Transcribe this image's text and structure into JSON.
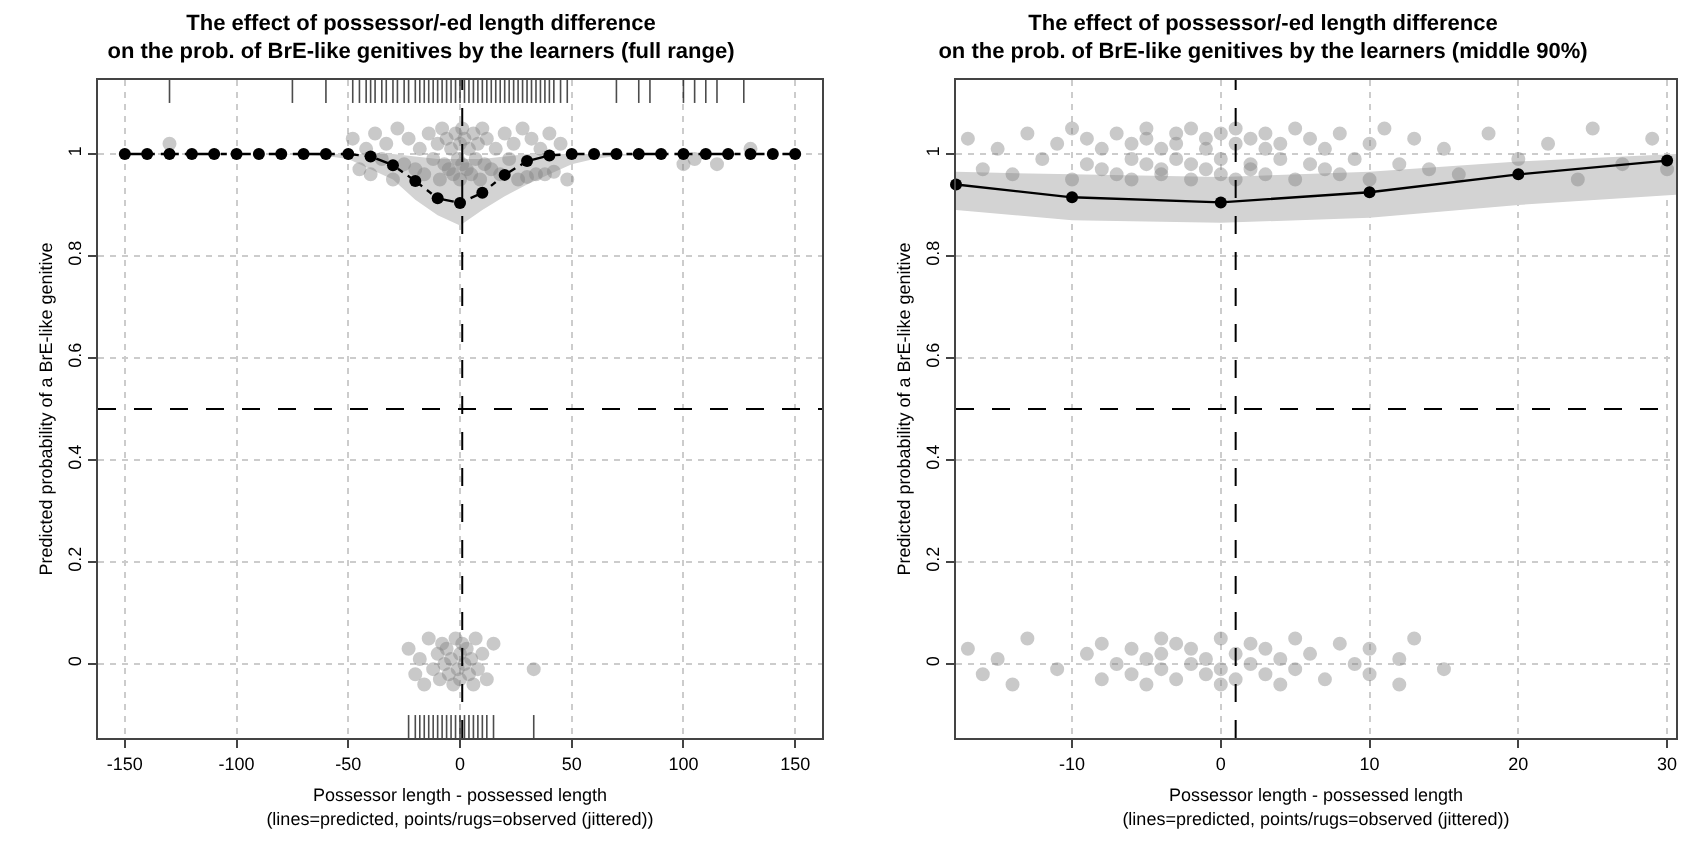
{
  "chart_data": [
    {
      "type": "scatter",
      "title": "The effect of possessor/-ed length difference\non the prob. of BrE-like genitives by the learners (full range)",
      "xlabel": "Possessor length - possessed length\n(lines=predicted, points/rugs=observed (jittered))",
      "ylabel": "Predicted probability of a BrE-like genitive",
      "xlim": [
        -162,
        162
      ],
      "xticks": [
        -150,
        -100,
        -50,
        0,
        50,
        100,
        150
      ],
      "ylim": [
        -0.145,
        1.145
      ],
      "yticks": [
        0.0,
        0.2,
        0.4,
        0.6,
        0.8,
        1.0
      ],
      "grid": true,
      "ref_lines": [
        {
          "axis": "x",
          "value": 1,
          "color": "#000000",
          "line_style": "dashed"
        },
        {
          "axis": "y",
          "value": 0.5,
          "color": "#000000",
          "line_style": "dashed"
        }
      ],
      "series": [
        {
          "marker": "circle",
          "color": "#808080",
          "x": [
            -48,
            -45,
            -42,
            -40,
            -38,
            -35,
            -33,
            -30,
            -28,
            -25,
            -23,
            -20,
            -18,
            -16,
            -14,
            -12,
            -10,
            -9,
            -8,
            -7,
            -6,
            -5,
            -4,
            -3,
            -2,
            -1,
            0,
            0,
            1,
            1,
            2,
            3,
            4,
            5,
            6,
            7,
            8,
            9,
            10,
            11,
            12,
            14,
            16,
            18,
            20,
            22,
            24,
            26,
            28,
            30,
            32,
            34,
            36,
            38,
            40,
            42,
            45,
            48,
            -130,
            100,
            105,
            115,
            130
          ],
          "values": [
            1.03,
            0.97,
            1.01,
            0.96,
            1.04,
            0.99,
            1.02,
            0.95,
            1.05,
            0.98,
            1.03,
            0.97,
            1.01,
            0.96,
            1.04,
            0.99,
            1.02,
            0.95,
            1.05,
            0.98,
            1.03,
            0.97,
            1.01,
            0.96,
            1.04,
            0.99,
            1.02,
            0.95,
            1.05,
            0.98,
            1.03,
            0.97,
            1.01,
            0.96,
            1.04,
            0.99,
            1.02,
            0.95,
            1.05,
            0.98,
            1.03,
            0.97,
            1.01,
            0.96,
            1.04,
            0.99,
            1.02,
            0.95,
            1.05,
            0.955,
            1.03,
            0.96,
            1.01,
            0.96,
            1.04,
            0.965,
            1.02,
            0.95,
            1.02,
            0.98,
            0.99,
            0.98,
            1.01
          ]
        },
        {
          "marker": "circle",
          "color": "#808080",
          "x": [
            -23,
            -20,
            -18,
            -16,
            -14,
            -12,
            -10,
            -9,
            -8,
            -7,
            -6,
            -5,
            -4,
            -3,
            -2,
            -1,
            0,
            0,
            1,
            2,
            3,
            4,
            5,
            6,
            7,
            8,
            10,
            12,
            15,
            33
          ],
          "values": [
            0.03,
            -0.02,
            0.01,
            -0.04,
            0.05,
            -0.01,
            0.02,
            -0.03,
            0.04,
            0.0,
            0.03,
            -0.02,
            0.01,
            -0.04,
            0.05,
            -0.01,
            0.02,
            -0.03,
            0.04,
            0.0,
            0.03,
            -0.02,
            0.01,
            -0.04,
            0.05,
            -0.01,
            0.02,
            -0.03,
            0.04,
            -0.01
          ]
        },
        {
          "type": "bar",
          "color": "#000000",
          "x": [
            -130,
            -75,
            -60,
            -48,
            -45,
            -42,
            -40,
            -38,
            -35,
            -33,
            -30,
            -28,
            -25,
            -23,
            -20,
            -18,
            -16,
            -14,
            -12,
            -10,
            -8,
            -6,
            -4,
            -2,
            0,
            2,
            4,
            6,
            8,
            10,
            12,
            14,
            16,
            18,
            20,
            22,
            24,
            26,
            28,
            30,
            32,
            34,
            36,
            38,
            40,
            42,
            45,
            48,
            70,
            80,
            85,
            100,
            105,
            110,
            115,
            127
          ],
          "base": [
            1.1,
            1.1,
            1.1,
            1.1,
            1.1,
            1.1,
            1.1,
            1.1,
            1.1,
            1.1,
            1.1,
            1.1,
            1.1,
            1.1,
            1.1,
            1.1,
            1.1,
            1.1,
            1.1,
            1.1,
            1.1,
            1.1,
            1.1,
            1.1,
            1.1,
            1.1,
            1.1,
            1.1,
            1.1,
            1.1,
            1.1,
            1.1,
            1.1,
            1.1,
            1.1,
            1.1,
            1.1,
            1.1,
            1.1,
            1.1,
            1.1,
            1.1,
            1.1,
            1.1,
            1.1,
            1.1,
            1.1,
            1.1,
            1.1,
            1.1,
            1.1,
            1.1,
            1.1,
            1.1,
            1.1,
            1.1
          ],
          "values": [
            0.045,
            0.045,
            0.045,
            0.045,
            0.045,
            0.045,
            0.045,
            0.045,
            0.045,
            0.045,
            0.045,
            0.045,
            0.045,
            0.045,
            0.045,
            0.045,
            0.045,
            0.045,
            0.045,
            0.045,
            0.045,
            0.045,
            0.045,
            0.045,
            0.045,
            0.045,
            0.045,
            0.045,
            0.045,
            0.045,
            0.045,
            0.045,
            0.045,
            0.045,
            0.045,
            0.045,
            0.045,
            0.045,
            0.045,
            0.045,
            0.045,
            0.045,
            0.045,
            0.045,
            0.045,
            0.045,
            0.045,
            0.045,
            0.045,
            0.045,
            0.045,
            0.045,
            0.045,
            0.045,
            0.045,
            0.045
          ]
        },
        {
          "type": "bar",
          "color": "#000000",
          "x": [
            -23,
            -20,
            -18,
            -16,
            -14,
            -12,
            -10,
            -8,
            -6,
            -4,
            -2,
            0,
            2,
            4,
            6,
            8,
            10,
            12,
            15,
            33
          ],
          "base": [
            -0.145,
            -0.145,
            -0.145,
            -0.145,
            -0.145,
            -0.145,
            -0.145,
            -0.145,
            -0.145,
            -0.145,
            -0.145,
            -0.145,
            -0.145,
            -0.145,
            -0.145,
            -0.145,
            -0.145,
            -0.145,
            -0.145,
            -0.145
          ],
          "values": [
            0.045,
            0.045,
            0.045,
            0.045,
            0.045,
            0.045,
            0.045,
            0.045,
            0.045,
            0.045,
            0.045,
            0.045,
            0.045,
            0.045,
            0.045,
            0.045,
            0.045,
            0.045,
            0.045,
            0.045
          ]
        },
        {
          "type": "line",
          "marker": "circle",
          "line_style": "dashed",
          "color": "#000000",
          "x": [
            -150,
            -140,
            -130,
            -120,
            -110,
            -100,
            -90,
            -80,
            -70,
            -60,
            -50,
            -40,
            -30,
            -20,
            -10,
            0,
            10,
            20,
            30,
            40,
            50,
            60,
            70,
            80,
            90,
            100,
            110,
            120,
            130,
            140,
            150
          ],
          "values": [
            1.0,
            1.0,
            1.0,
            1.0,
            1.0,
            1.0,
            1.0,
            1.0,
            1.0,
            1.0,
            1.0,
            0.995,
            0.978,
            0.947,
            0.913,
            0.904,
            0.924,
            0.959,
            0.986,
            0.997,
            1.0,
            1.0,
            1.0,
            1.0,
            1.0,
            1.0,
            1.0,
            1.0,
            1.0,
            1.0,
            1.0
          ],
          "lower": [
            1.0,
            1.0,
            1.0,
            1.0,
            1.0,
            1.0,
            1.0,
            1.0,
            0.998,
            0.996,
            0.99,
            0.97,
            0.95,
            0.91,
            0.88,
            0.86,
            0.89,
            0.917,
            0.94,
            0.96,
            0.98,
            0.99,
            0.996,
            0.998,
            1.0,
            1.0,
            1.0,
            1.0,
            1.0,
            1.0,
            1.0
          ],
          "upper": [
            1.0,
            1.0,
            1.0,
            1.0,
            1.0,
            1.0,
            1.0,
            1.0,
            1.0,
            1.0,
            1.0,
            1.0,
            1.0,
            0.995,
            0.99,
            0.99,
            0.99,
            0.995,
            1.0,
            1.0,
            1.0,
            1.0,
            1.0,
            1.0,
            1.0,
            1.0,
            1.0,
            1.0,
            1.0,
            1.0,
            1.0
          ]
        }
      ]
    },
    {
      "type": "scatter",
      "title": "The effect of possessor/-ed length difference\non the prob. of BrE-like genitives by the learners (middle 90%)",
      "xlabel": "Possessor length - possessed length\n(lines=predicted, points/rugs=observed (jittered))",
      "ylabel": "Predicted probability of a BrE-like genitive",
      "xlim": [
        -17.8,
        30.6
      ],
      "xticks": [
        -10,
        0,
        10,
        20,
        30
      ],
      "ylim": [
        -0.145,
        1.145
      ],
      "yticks": [
        0.0,
        0.2,
        0.4,
        0.6,
        0.8,
        1.0
      ],
      "grid": true,
      "ref_lines": [
        {
          "axis": "x",
          "value": 1,
          "color": "#000000",
          "line_style": "dashed"
        },
        {
          "axis": "y",
          "value": 0.5,
          "color": "#000000",
          "line_style": "dashed"
        }
      ],
      "series": [
        {
          "type": "line",
          "marker": "none",
          "line_style": "solid",
          "color": "#d3d3d3",
          "x": [
            -17.8,
            -10,
            0,
            10,
            20,
            30.6
          ],
          "values": [
            null,
            null,
            null,
            null,
            null,
            null
          ],
          "lower": [
            0.89,
            0.87,
            0.865,
            0.875,
            0.9,
            0.92
          ],
          "upper": [
            0.965,
            0.96,
            0.955,
            0.965,
            0.985,
            1.0
          ]
        },
        {
          "marker": "circle",
          "color": "#808080",
          "x": [
            -17,
            -16,
            -15,
            -14,
            -13,
            -12,
            -11,
            -10,
            -10,
            -9,
            -9,
            -8,
            -8,
            -7,
            -7,
            -6,
            -6,
            -6,
            -5,
            -5,
            -5,
            -4,
            -4,
            -4,
            -3,
            -3,
            -3,
            -2,
            -2,
            -2,
            -1,
            -1,
            -1,
            0,
            0,
            0,
            1,
            1,
            1,
            2,
            2,
            2,
            3,
            3,
            3,
            4,
            4,
            5,
            5,
            6,
            6,
            7,
            7,
            8,
            8,
            9,
            10,
            10,
            11,
            12,
            13,
            14,
            15,
            16,
            18,
            20,
            22,
            24,
            25,
            27,
            29,
            30
          ],
          "values": [
            1.03,
            0.97,
            1.01,
            0.96,
            1.04,
            0.99,
            1.02,
            0.95,
            1.05,
            0.98,
            1.03,
            0.97,
            1.01,
            0.96,
            1.04,
            0.99,
            1.02,
            0.95,
            1.05,
            0.98,
            1.03,
            0.97,
            1.01,
            0.96,
            1.04,
            0.99,
            1.02,
            0.95,
            1.05,
            0.98,
            1.03,
            0.97,
            1.01,
            0.96,
            1.04,
            0.99,
            1.02,
            0.95,
            1.05,
            0.98,
            1.03,
            0.97,
            1.01,
            0.96,
            1.04,
            0.99,
            1.02,
            0.95,
            1.05,
            0.98,
            1.03,
            0.97,
            1.01,
            0.96,
            1.04,
            0.99,
            1.02,
            0.95,
            1.05,
            0.98,
            1.03,
            0.97,
            1.01,
            0.96,
            1.04,
            0.99,
            1.02,
            0.95,
            1.05,
            0.98,
            1.03,
            0.97
          ]
        },
        {
          "marker": "circle",
          "color": "#808080",
          "x": [
            -17,
            -16,
            -15,
            -14,
            -13,
            -11,
            -9,
            -8,
            -8,
            -7,
            -6,
            -6,
            -5,
            -5,
            -4,
            -4,
            -4,
            -3,
            -3,
            -2,
            -2,
            -1,
            -1,
            0,
            0,
            0,
            1,
            1,
            2,
            2,
            3,
            3,
            4,
            4,
            5,
            5,
            6,
            7,
            8,
            9,
            10,
            10,
            12,
            12,
            13,
            15
          ],
          "values": [
            0.03,
            -0.02,
            0.01,
            -0.04,
            0.05,
            -0.01,
            0.02,
            -0.03,
            0.04,
            0.0,
            0.03,
            -0.02,
            0.01,
            -0.04,
            0.05,
            -0.01,
            0.02,
            -0.03,
            0.04,
            0.0,
            0.03,
            -0.02,
            0.01,
            -0.04,
            0.05,
            -0.01,
            0.02,
            -0.03,
            0.04,
            0.0,
            0.03,
            -0.02,
            0.01,
            -0.04,
            0.05,
            -0.01,
            0.02,
            -0.03,
            0.04,
            0.0,
            0.03,
            -0.02,
            0.01,
            -0.04,
            0.05,
            -0.01
          ]
        },
        {
          "type": "line",
          "marker": "circle",
          "line_style": "solid",
          "color": "#000000",
          "x": [
            -17.8,
            -10,
            0,
            10,
            20,
            30
          ],
          "values": [
            0.94,
            0.915,
            0.905,
            0.925,
            0.96,
            0.987
          ]
        }
      ]
    }
  ]
}
